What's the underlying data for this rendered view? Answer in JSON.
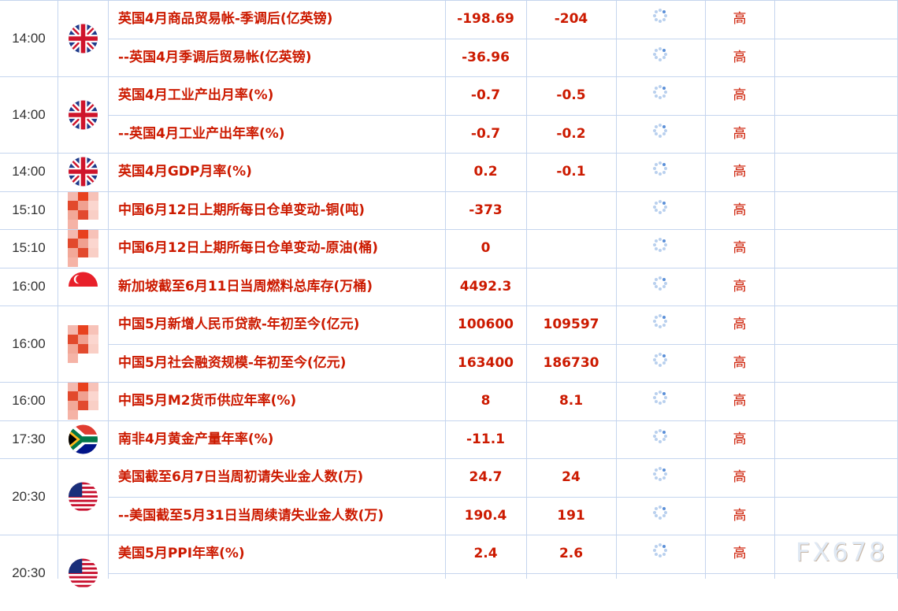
{
  "colors": {
    "text": "#cc1a00",
    "grid": "#c5d5ee",
    "spinner": "#b9d0ee"
  },
  "groups": [
    {
      "time": "14:00",
      "flag": "uk-flag",
      "rows": [
        {
          "event": "英国4月商品贸易帐-季调后(亿英镑)",
          "previous": "-198.69",
          "forecast": "-204",
          "importance": "高"
        },
        {
          "event": "--英国4月季调后贸易帐(亿英镑)",
          "previous": "-36.96",
          "forecast": "",
          "importance": "高"
        }
      ]
    },
    {
      "time": "14:00",
      "flag": "uk-flag",
      "rows": [
        {
          "event": "英国4月工业产出月率(%)",
          "previous": "-0.7",
          "forecast": "-0.5",
          "importance": "高"
        },
        {
          "event": "--英国4月工业产出年率(%)",
          "previous": "-0.7",
          "forecast": "-0.2",
          "importance": "高"
        }
      ]
    },
    {
      "time": "14:00",
      "flag": "uk-flag",
      "rows": [
        {
          "event": "英国4月GDP月率(%)",
          "previous": "0.2",
          "forecast": "-0.1",
          "importance": "高"
        }
      ]
    },
    {
      "time": "15:10",
      "flag": "china-flag-blurred",
      "rows": [
        {
          "event": "中国6月12日上期所每日仓单变动-铜(吨)",
          "previous": "-373",
          "forecast": "",
          "importance": "高"
        }
      ]
    },
    {
      "time": "15:10",
      "flag": "china-flag-blurred",
      "rows": [
        {
          "event": "中国6月12日上期所每日仓单变动-原油(桶)",
          "previous": "0",
          "forecast": "",
          "importance": "高"
        }
      ]
    },
    {
      "time": "16:00",
      "flag": "singapore-flag",
      "rows": [
        {
          "event": "新加坡截至6月11日当周燃料总库存(万桶)",
          "previous": "4492.3",
          "forecast": "",
          "importance": "高"
        }
      ]
    },
    {
      "time": "16:00",
      "flag": "china-flag-blurred",
      "rows": [
        {
          "event": "中国5月新增人民币贷款-年初至今(亿元)",
          "previous": "100600",
          "forecast": "109597",
          "importance": "高"
        },
        {
          "event": "中国5月社会融资规模-年初至今(亿元)",
          "previous": "163400",
          "forecast": "186730",
          "importance": "高"
        }
      ]
    },
    {
      "time": "16:00",
      "flag": "china-flag-blurred",
      "rows": [
        {
          "event": "中国5月M2货币供应年率(%)",
          "previous": "8",
          "forecast": "8.1",
          "importance": "高"
        }
      ]
    },
    {
      "time": "17:30",
      "flag": "south-africa-flag",
      "rows": [
        {
          "event": "南非4月黄金产量年率(%)",
          "previous": "-11.1",
          "forecast": "",
          "importance": "高"
        }
      ]
    },
    {
      "time": "20:30",
      "flag": "us-flag",
      "rows": [
        {
          "event": "美国截至6月7日当周初请失业金人数(万)",
          "previous": "24.7",
          "forecast": "24",
          "importance": "高"
        },
        {
          "event": "--美国截至5月31日当周续请失业金人数(万)",
          "previous": "190.4",
          "forecast": "191",
          "importance": "高"
        }
      ]
    },
    {
      "time": "20:30",
      "flag": "us-flag",
      "rows": [
        {
          "event": "美国5月PPI年率(%)",
          "previous": "2.4",
          "forecast": "2.6",
          "importance": "高"
        },
        {
          "event": "",
          "previous": "",
          "forecast": "",
          "importance": ""
        }
      ]
    }
  ],
  "watermark": "FX678"
}
